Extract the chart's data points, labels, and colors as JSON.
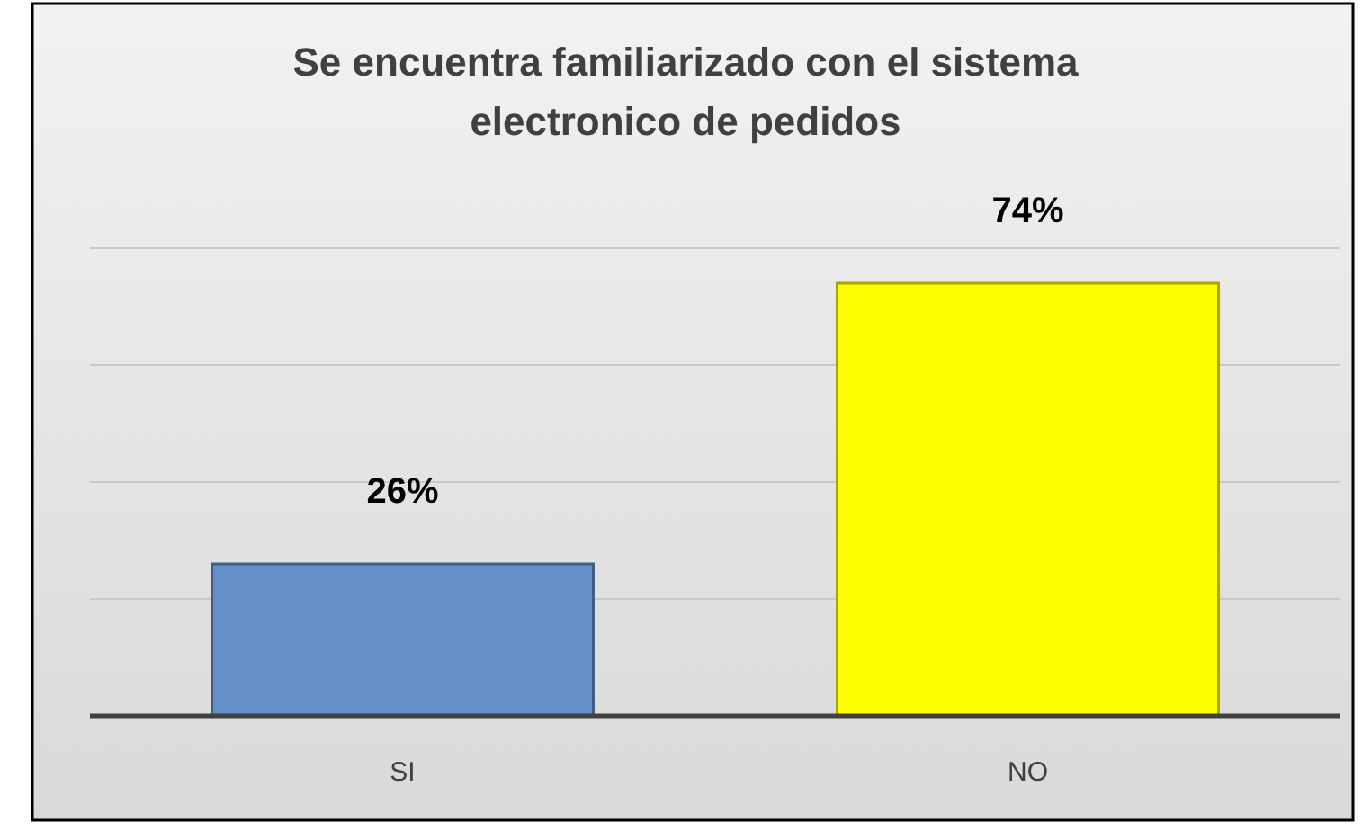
{
  "chart_data": {
    "type": "bar",
    "title": "Se encuentra familiarizado con el sistema electronico de pedidos",
    "categories": [
      "SI",
      "NO"
    ],
    "values": [
      26,
      74
    ],
    "colors": [
      "#658fc7",
      "#ffff00"
    ],
    "value_labels": [
      "26%",
      "74%"
    ],
    "ylim": [
      0,
      80
    ],
    "yticks": [
      {
        "value": 0,
        "label": null
      },
      {
        "value": 20,
        "label": null
      },
      {
        "value": 40,
        "label": null
      },
      {
        "value": 60,
        "label": null
      },
      {
        "value": 80,
        "label": null
      }
    ],
    "tick_labels": "x",
    "grid": "y"
  }
}
